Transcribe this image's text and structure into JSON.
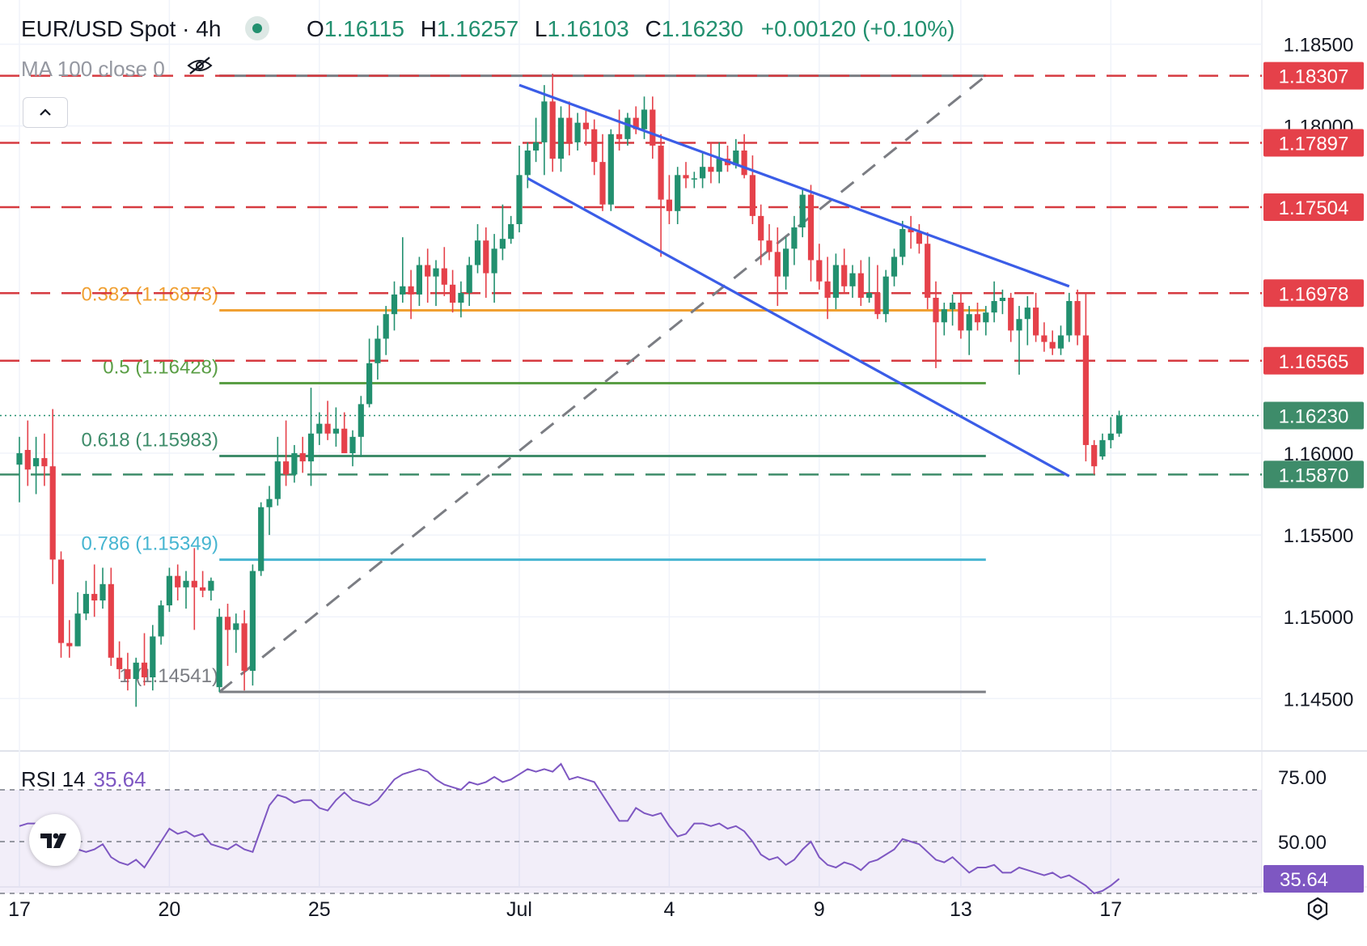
{
  "header": {
    "symbol": "EUR/USD Spot · 4h",
    "open_label": "O",
    "open": "1.16115",
    "high_label": "H",
    "high": "1.16257",
    "low_label": "L",
    "low": "1.16103",
    "close_label": "C",
    "close": "1.16230",
    "change": "+0.00120 (+0.10%)"
  },
  "indicators": {
    "ma_label": "MA 100 close 0",
    "rsi_label": "RSI 14",
    "rsi_value": "35.64"
  },
  "icons": {
    "visibility": "eye-off-icon",
    "collapse": "chevron-up-icon",
    "logo": "tradingview-logo-icon",
    "settings": "gear-icon"
  },
  "colors": {
    "up": "#22906f",
    "down": "#e5414a",
    "channel": "#3b5de7",
    "support": "#3e8c6a",
    "resistance": "#d63a40",
    "fib_0382": "#f0a032",
    "fib_05": "#5a9e45",
    "fib_0618": "#3e8c6a",
    "fib_0786": "#46b5d1",
    "fib_1": "#7b7d83",
    "rsi_line": "#7e57c2"
  },
  "chart_data": {
    "type": "candlestick",
    "title": "EUR/USD Spot · 4h",
    "price_axis": {
      "ylim": [
        1.1418,
        1.1877
      ],
      "ticks": [
        "1.18500",
        "1.18000",
        "1.16000",
        "1.15500",
        "1.15000",
        "1.14500"
      ]
    },
    "x_axis": {
      "ticks": [
        {
          "label": "17",
          "bar": 0
        },
        {
          "label": "20",
          "bar": 18
        },
        {
          "label": "25",
          "bar": 36
        },
        {
          "label": "Jul",
          "bar": 60
        },
        {
          "label": "4",
          "bar": 78
        },
        {
          "label": "9",
          "bar": 96
        },
        {
          "label": "13",
          "bar": 113
        },
        {
          "label": "17",
          "bar": 131
        }
      ]
    },
    "levels": [
      {
        "value": 1.18307,
        "label": "1.18307",
        "style": "dashed",
        "color": "resistance"
      },
      {
        "value": 1.17897,
        "label": "1.17897",
        "style": "dashed",
        "color": "resistance"
      },
      {
        "value": 1.17504,
        "label": "1.17504",
        "style": "dashed",
        "color": "resistance"
      },
      {
        "value": 1.16978,
        "label": "1.16978",
        "style": "dashed",
        "color": "resistance"
      },
      {
        "value": 1.16565,
        "label": "1.16565",
        "style": "dashed",
        "color": "resistance"
      },
      {
        "value": 1.1587,
        "label": "1.15870",
        "style": "dashed",
        "color": "support"
      }
    ],
    "current_price": {
      "value": 1.1623,
      "label": "1.16230"
    },
    "fibonacci": [
      {
        "ratio": "0.382",
        "label": "0.382 (1.16873)",
        "value": 1.16873,
        "color": "fib_0382"
      },
      {
        "ratio": "0.5",
        "label": "0.5 (1.16428)",
        "value": 1.16428,
        "color": "fib_05"
      },
      {
        "ratio": "0.618",
        "label": "0.618 (1.15983)",
        "value": 1.15983,
        "color": "fib_0618"
      },
      {
        "ratio": "0.786",
        "label": "0.786 (1.15349)",
        "value": 1.15349,
        "color": "fib_0786"
      },
      {
        "ratio": "1",
        "label": "1 (1.14541)",
        "value": 1.14541,
        "color": "fib_1"
      }
    ],
    "fib_range": {
      "start_bar": 24,
      "end_bar": 116,
      "top_value": 1.18307
    },
    "trend_line": {
      "from": {
        "bar": 24,
        "value": 1.14541
      },
      "to": {
        "bar": 116,
        "value": 1.18307
      }
    },
    "channel": {
      "upper": {
        "from": {
          "bar": 60,
          "value": 1.1825
        },
        "to": {
          "bar": 126,
          "value": 1.1702
        }
      },
      "lower": {
        "from": {
          "bar": 61,
          "value": 1.1768
        },
        "to": {
          "bar": 126,
          "value": 1.1586
        }
      }
    },
    "candles": [
      {
        "o": 1.1593,
        "h": 1.161,
        "l": 1.157,
        "c": 1.16
      },
      {
        "o": 1.1602,
        "h": 1.162,
        "l": 1.158,
        "c": 1.159
      },
      {
        "o": 1.1592,
        "h": 1.161,
        "l": 1.1575,
        "c": 1.1597
      },
      {
        "o": 1.1597,
        "h": 1.1612,
        "l": 1.158,
        "c": 1.1592
      },
      {
        "o": 1.1592,
        "h": 1.1627,
        "l": 1.152,
        "c": 1.1535
      },
      {
        "o": 1.1535,
        "h": 1.154,
        "l": 1.1475,
        "c": 1.1484
      },
      {
        "o": 1.1484,
        "h": 1.1498,
        "l": 1.1475,
        "c": 1.1482
      },
      {
        "o": 1.1482,
        "h": 1.1515,
        "l": 1.1482,
        "c": 1.1502
      },
      {
        "o": 1.1502,
        "h": 1.1522,
        "l": 1.1498,
        "c": 1.1514
      },
      {
        "o": 1.1514,
        "h": 1.1532,
        "l": 1.15,
        "c": 1.151
      },
      {
        "o": 1.151,
        "h": 1.153,
        "l": 1.1505,
        "c": 1.152
      },
      {
        "o": 1.152,
        "h": 1.153,
        "l": 1.147,
        "c": 1.1475
      },
      {
        "o": 1.1475,
        "h": 1.1485,
        "l": 1.1462,
        "c": 1.1468
      },
      {
        "o": 1.1468,
        "h": 1.1478,
        "l": 1.1455,
        "c": 1.1462
      },
      {
        "o": 1.1462,
        "h": 1.1475,
        "l": 1.1445,
        "c": 1.1472
      },
      {
        "o": 1.1472,
        "h": 1.149,
        "l": 1.1458,
        "c": 1.1463
      },
      {
        "o": 1.1463,
        "h": 1.1495,
        "l": 1.1455,
        "c": 1.1488
      },
      {
        "o": 1.1488,
        "h": 1.151,
        "l": 1.1483,
        "c": 1.1507
      },
      {
        "o": 1.1507,
        "h": 1.153,
        "l": 1.1503,
        "c": 1.1525
      },
      {
        "o": 1.1525,
        "h": 1.1532,
        "l": 1.151,
        "c": 1.1518
      },
      {
        "o": 1.1518,
        "h": 1.1528,
        "l": 1.1505,
        "c": 1.1522
      },
      {
        "o": 1.1522,
        "h": 1.1542,
        "l": 1.1492,
        "c": 1.1518
      },
      {
        "o": 1.1518,
        "h": 1.1528,
        "l": 1.1512,
        "c": 1.1516
      },
      {
        "o": 1.1516,
        "h": 1.1524,
        "l": 1.151,
        "c": 1.1522
      },
      {
        "o": 1.1457,
        "h": 1.1505,
        "l": 1.1454,
        "c": 1.15
      },
      {
        "o": 1.15,
        "h": 1.1508,
        "l": 1.147,
        "c": 1.1492
      },
      {
        "o": 1.1492,
        "h": 1.1502,
        "l": 1.1478,
        "c": 1.1496
      },
      {
        "o": 1.1496,
        "h": 1.1504,
        "l": 1.1455,
        "c": 1.1467
      },
      {
        "o": 1.1467,
        "h": 1.1532,
        "l": 1.1458,
        "c": 1.1528
      },
      {
        "o": 1.1528,
        "h": 1.157,
        "l": 1.1525,
        "c": 1.1567
      },
      {
        "o": 1.1567,
        "h": 1.158,
        "l": 1.155,
        "c": 1.1572
      },
      {
        "o": 1.1572,
        "h": 1.161,
        "l": 1.1568,
        "c": 1.1595
      },
      {
        "o": 1.1595,
        "h": 1.162,
        "l": 1.158,
        "c": 1.1587
      },
      {
        "o": 1.1587,
        "h": 1.1605,
        "l": 1.1582,
        "c": 1.16
      },
      {
        "o": 1.16,
        "h": 1.161,
        "l": 1.1588,
        "c": 1.1595
      },
      {
        "o": 1.1595,
        "h": 1.164,
        "l": 1.158,
        "c": 1.1612
      },
      {
        "o": 1.1612,
        "h": 1.1625,
        "l": 1.1605,
        "c": 1.1618
      },
      {
        "o": 1.1618,
        "h": 1.1632,
        "l": 1.1608,
        "c": 1.1612
      },
      {
        "o": 1.1612,
        "h": 1.1628,
        "l": 1.1604,
        "c": 1.1615
      },
      {
        "o": 1.1615,
        "h": 1.1625,
        "l": 1.16,
        "c": 1.16
      },
      {
        "o": 1.16,
        "h": 1.1614,
        "l": 1.1592,
        "c": 1.161
      },
      {
        "o": 1.161,
        "h": 1.1635,
        "l": 1.1598,
        "c": 1.163
      },
      {
        "o": 1.163,
        "h": 1.167,
        "l": 1.1628,
        "c": 1.1655
      },
      {
        "o": 1.1655,
        "h": 1.1678,
        "l": 1.1645,
        "c": 1.167
      },
      {
        "o": 1.167,
        "h": 1.169,
        "l": 1.166,
        "c": 1.1685
      },
      {
        "o": 1.1685,
        "h": 1.1705,
        "l": 1.1675,
        "c": 1.1697
      },
      {
        "o": 1.1697,
        "h": 1.1732,
        "l": 1.1692,
        "c": 1.1702
      },
      {
        "o": 1.1702,
        "h": 1.1712,
        "l": 1.1682,
        "c": 1.1697
      },
      {
        "o": 1.1697,
        "h": 1.172,
        "l": 1.169,
        "c": 1.1715
      },
      {
        "o": 1.1715,
        "h": 1.1725,
        "l": 1.1692,
        "c": 1.1708
      },
      {
        "o": 1.1708,
        "h": 1.1718,
        "l": 1.169,
        "c": 1.1713
      },
      {
        "o": 1.1713,
        "h": 1.1726,
        "l": 1.1696,
        "c": 1.1703
      },
      {
        "o": 1.1703,
        "h": 1.1712,
        "l": 1.1686,
        "c": 1.1692
      },
      {
        "o": 1.1692,
        "h": 1.1705,
        "l": 1.1683,
        "c": 1.1698
      },
      {
        "o": 1.1698,
        "h": 1.172,
        "l": 1.169,
        "c": 1.1715
      },
      {
        "o": 1.1715,
        "h": 1.174,
        "l": 1.171,
        "c": 1.173
      },
      {
        "o": 1.173,
        "h": 1.1738,
        "l": 1.1695,
        "c": 1.171
      },
      {
        "o": 1.171,
        "h": 1.1734,
        "l": 1.1692,
        "c": 1.1725
      },
      {
        "o": 1.1725,
        "h": 1.1752,
        "l": 1.1718,
        "c": 1.1731
      },
      {
        "o": 1.1731,
        "h": 1.1745,
        "l": 1.1728,
        "c": 1.174
      },
      {
        "o": 1.174,
        "h": 1.1788,
        "l": 1.1735,
        "c": 1.177
      },
      {
        "o": 1.177,
        "h": 1.179,
        "l": 1.1762,
        "c": 1.1785
      },
      {
        "o": 1.1785,
        "h": 1.1805,
        "l": 1.1778,
        "c": 1.179
      },
      {
        "o": 1.179,
        "h": 1.1825,
        "l": 1.177,
        "c": 1.1815
      },
      {
        "o": 1.1815,
        "h": 1.1832,
        "l": 1.1772,
        "c": 1.178
      },
      {
        "o": 1.178,
        "h": 1.1812,
        "l": 1.1772,
        "c": 1.1805
      },
      {
        "o": 1.1805,
        "h": 1.1815,
        "l": 1.1782,
        "c": 1.179
      },
      {
        "o": 1.179,
        "h": 1.1808,
        "l": 1.1785,
        "c": 1.1802
      },
      {
        "o": 1.1802,
        "h": 1.181,
        "l": 1.1788,
        "c": 1.1798
      },
      {
        "o": 1.1798,
        "h": 1.1804,
        "l": 1.177,
        "c": 1.1778
      },
      {
        "o": 1.1778,
        "h": 1.1795,
        "l": 1.1748,
        "c": 1.1752
      },
      {
        "o": 1.1752,
        "h": 1.1798,
        "l": 1.1748,
        "c": 1.1795
      },
      {
        "o": 1.1795,
        "h": 1.181,
        "l": 1.1785,
        "c": 1.1792
      },
      {
        "o": 1.1792,
        "h": 1.1808,
        "l": 1.1788,
        "c": 1.1805
      },
      {
        "o": 1.1805,
        "h": 1.1812,
        "l": 1.1795,
        "c": 1.1798
      },
      {
        "o": 1.1798,
        "h": 1.1818,
        "l": 1.1792,
        "c": 1.181
      },
      {
        "o": 1.181,
        "h": 1.1818,
        "l": 1.178,
        "c": 1.1788
      },
      {
        "o": 1.1788,
        "h": 1.1795,
        "l": 1.172,
        "c": 1.1755
      },
      {
        "o": 1.1755,
        "h": 1.177,
        "l": 1.174,
        "c": 1.1748
      },
      {
        "o": 1.1748,
        "h": 1.1775,
        "l": 1.174,
        "c": 1.177
      },
      {
        "o": 1.177,
        "h": 1.1778,
        "l": 1.1762,
        "c": 1.1768
      },
      {
        "o": 1.1768,
        "h": 1.1772,
        "l": 1.1762,
        "c": 1.1768
      },
      {
        "o": 1.1768,
        "h": 1.1784,
        "l": 1.1762,
        "c": 1.1775
      },
      {
        "o": 1.1775,
        "h": 1.179,
        "l": 1.1765,
        "c": 1.1772
      },
      {
        "o": 1.1772,
        "h": 1.179,
        "l": 1.1765,
        "c": 1.178
      },
      {
        "o": 1.178,
        "h": 1.1788,
        "l": 1.1772,
        "c": 1.1776
      },
      {
        "o": 1.1776,
        "h": 1.1792,
        "l": 1.1774,
        "c": 1.1785
      },
      {
        "o": 1.1785,
        "h": 1.1795,
        "l": 1.1768,
        "c": 1.177
      },
      {
        "o": 1.177,
        "h": 1.1782,
        "l": 1.174,
        "c": 1.1745
      },
      {
        "o": 1.1745,
        "h": 1.1752,
        "l": 1.1715,
        "c": 1.173
      },
      {
        "o": 1.173,
        "h": 1.174,
        "l": 1.1718,
        "c": 1.1723
      },
      {
        "o": 1.1723,
        "h": 1.1738,
        "l": 1.169,
        "c": 1.1708
      },
      {
        "o": 1.1708,
        "h": 1.1732,
        "l": 1.17,
        "c": 1.1725
      },
      {
        "o": 1.1725,
        "h": 1.1745,
        "l": 1.1715,
        "c": 1.1738
      },
      {
        "o": 1.1738,
        "h": 1.1762,
        "l": 1.1732,
        "c": 1.1758
      },
      {
        "o": 1.1758,
        "h": 1.1764,
        "l": 1.1705,
        "c": 1.1718
      },
      {
        "o": 1.1718,
        "h": 1.1728,
        "l": 1.17,
        "c": 1.1705
      },
      {
        "o": 1.1705,
        "h": 1.172,
        "l": 1.1682,
        "c": 1.1695
      },
      {
        "o": 1.1695,
        "h": 1.1722,
        "l": 1.1688,
        "c": 1.1715
      },
      {
        "o": 1.1715,
        "h": 1.1725,
        "l": 1.1698,
        "c": 1.1702
      },
      {
        "o": 1.1702,
        "h": 1.1715,
        "l": 1.1695,
        "c": 1.171
      },
      {
        "o": 1.171,
        "h": 1.1718,
        "l": 1.169,
        "c": 1.1695
      },
      {
        "o": 1.1695,
        "h": 1.172,
        "l": 1.1692,
        "c": 1.1698
      },
      {
        "o": 1.1698,
        "h": 1.1715,
        "l": 1.1682,
        "c": 1.1685
      },
      {
        "o": 1.1685,
        "h": 1.1712,
        "l": 1.168,
        "c": 1.1708
      },
      {
        "o": 1.1708,
        "h": 1.1725,
        "l": 1.1702,
        "c": 1.172
      },
      {
        "o": 1.172,
        "h": 1.1742,
        "l": 1.1715,
        "c": 1.1737
      },
      {
        "o": 1.1737,
        "h": 1.1745,
        "l": 1.1725,
        "c": 1.1735
      },
      {
        "o": 1.1735,
        "h": 1.174,
        "l": 1.1722,
        "c": 1.1728
      },
      {
        "o": 1.1728,
        "h": 1.1735,
        "l": 1.1688,
        "c": 1.1695
      },
      {
        "o": 1.1695,
        "h": 1.1705,
        "l": 1.1652,
        "c": 1.168
      },
      {
        "o": 1.168,
        "h": 1.1692,
        "l": 1.1672,
        "c": 1.1688
      },
      {
        "o": 1.1688,
        "h": 1.1697,
        "l": 1.1678,
        "c": 1.1692
      },
      {
        "o": 1.1692,
        "h": 1.1698,
        "l": 1.167,
        "c": 1.1675
      },
      {
        "o": 1.1675,
        "h": 1.169,
        "l": 1.166,
        "c": 1.1685
      },
      {
        "o": 1.1685,
        "h": 1.1692,
        "l": 1.1675,
        "c": 1.168
      },
      {
        "o": 1.168,
        "h": 1.169,
        "l": 1.1672,
        "c": 1.1686
      },
      {
        "o": 1.1686,
        "h": 1.1705,
        "l": 1.168,
        "c": 1.1693
      },
      {
        "o": 1.1693,
        "h": 1.17,
        "l": 1.1685,
        "c": 1.1695
      },
      {
        "o": 1.1695,
        "h": 1.1698,
        "l": 1.1668,
        "c": 1.1675
      },
      {
        "o": 1.1675,
        "h": 1.169,
        "l": 1.1648,
        "c": 1.1682
      },
      {
        "o": 1.1682,
        "h": 1.1696,
        "l": 1.1666,
        "c": 1.1689
      },
      {
        "o": 1.1689,
        "h": 1.1698,
        "l": 1.1668,
        "c": 1.1672
      },
      {
        "o": 1.1672,
        "h": 1.168,
        "l": 1.1662,
        "c": 1.1668
      },
      {
        "o": 1.1668,
        "h": 1.1675,
        "l": 1.166,
        "c": 1.1664
      },
      {
        "o": 1.1664,
        "h": 1.1678,
        "l": 1.166,
        "c": 1.1672
      },
      {
        "o": 1.1672,
        "h": 1.1698,
        "l": 1.1668,
        "c": 1.1693
      },
      {
        "o": 1.1693,
        "h": 1.17,
        "l": 1.1666,
        "c": 1.1672
      },
      {
        "o": 1.1672,
        "h": 1.1698,
        "l": 1.1595,
        "c": 1.1605
      },
      {
        "o": 1.1605,
        "h": 1.1608,
        "l": 1.1587,
        "c": 1.1592
      },
      {
        "o": 1.1598,
        "h": 1.1612,
        "l": 1.1596,
        "c": 1.1608
      },
      {
        "o": 1.1608,
        "h": 1.1622,
        "l": 1.1603,
        "c": 1.1612
      },
      {
        "o": 1.1612,
        "h": 1.1626,
        "l": 1.161,
        "c": 1.1623
      }
    ],
    "rsi": {
      "name": "RSI 14",
      "ylim": [
        30,
        80
      ],
      "ticks": [
        "75.00",
        "50.00"
      ],
      "band": [
        30,
        70
      ],
      "last_value": 35.64,
      "values": [
        56,
        57,
        57,
        56,
        54,
        45,
        45,
        47,
        46,
        47,
        49,
        44,
        42,
        41,
        43,
        40,
        45,
        50,
        55,
        53,
        54,
        52,
        53,
        49,
        48,
        47,
        49,
        47,
        46,
        55,
        64,
        68,
        67,
        65,
        66,
        66,
        63,
        62,
        66,
        69,
        66,
        65,
        64,
        66,
        70,
        74,
        76,
        77,
        78,
        77,
        74,
        72,
        71,
        70,
        73,
        72,
        73,
        75,
        73,
        74,
        76,
        78,
        77,
        78,
        77,
        80,
        74,
        75,
        74,
        73,
        68,
        63,
        58,
        58,
        63,
        61,
        60,
        61,
        56,
        52,
        53,
        57,
        57,
        56,
        57,
        55,
        56,
        54,
        50,
        45,
        43,
        44,
        41,
        43,
        47,
        50,
        44,
        41,
        40,
        42,
        41,
        39,
        42,
        43,
        45,
        47,
        51,
        50,
        49,
        46,
        43,
        42,
        44,
        41,
        38,
        40,
        40,
        41,
        38,
        38,
        40,
        39,
        38,
        37,
        38,
        36,
        37,
        35,
        33,
        30,
        31,
        33,
        35.64
      ]
    }
  }
}
